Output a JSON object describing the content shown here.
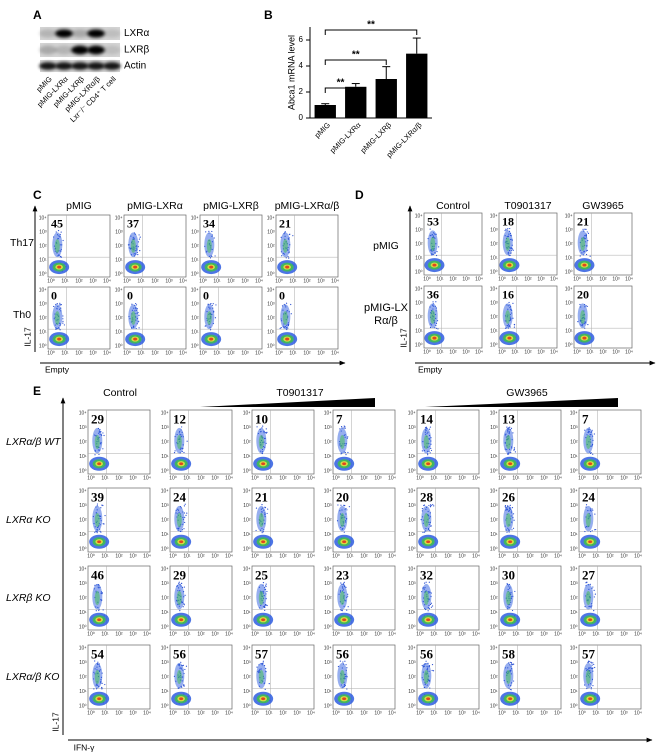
{
  "panel_labels": [
    "A",
    "B",
    "C",
    "D",
    "E"
  ],
  "flow_axis_ticks": [
    "10⁰",
    "10¹",
    "10²",
    "10³",
    "10⁴"
  ],
  "panel_a": {
    "bands": [
      "LXRα",
      "LXRβ",
      "Actin"
    ],
    "lanes": [
      "pMIG",
      "pMIG-LXRα",
      "pMIG-LXRβ",
      "pMIG-LXRα/β",
      "Lxr⁻/⁻ CD4⁺ T cell"
    ]
  },
  "chart_data": {
    "type": "bar",
    "categories": [
      "pMIG",
      "pMIG-LXRα",
      "pMIG-LXRβ",
      "pMIG-LXRα/β"
    ],
    "values": [
      1,
      2.4,
      3,
      4.95
    ],
    "errors": [
      0.1,
      0.25,
      0.95,
      1.2
    ],
    "ylabel": "Abca1 mRNA level",
    "ylim": [
      0,
      7
    ],
    "yticks": [
      0,
      2,
      4,
      6
    ],
    "color": "#000000",
    "significance_labels": [
      "**",
      "**",
      "**"
    ]
  },
  "panel_c": {
    "columns": [
      "pMIG",
      "pMIG-LXRα",
      "pMIG-LXRβ",
      "pMIG-LXRα/β"
    ],
    "rows": [
      "Th17",
      "Th0"
    ],
    "values": [
      [
        45,
        37,
        34,
        21
      ],
      [
        0,
        0,
        0,
        0
      ]
    ],
    "y_label": "IL-17",
    "x_label": "Empty"
  },
  "panel_d": {
    "columns": [
      "Control",
      "T0901317",
      "GW3965"
    ],
    "rows": [
      "pMIG",
      "pMIG-LXRα/β"
    ],
    "values": [
      [
        53,
        18,
        21
      ],
      [
        36,
        16,
        20
      ]
    ],
    "y_label": "IL-17",
    "x_label": "Empty"
  },
  "panel_e": {
    "headers": [
      "Control",
      "T0901317",
      "GW3965"
    ],
    "rows": [
      "LXRα/β WT",
      "LXRα KO",
      "LXRβ KO",
      "LXRα/β KO"
    ],
    "values": [
      [
        29,
        12,
        10,
        7,
        14,
        13,
        7
      ],
      [
        39,
        24,
        21,
        20,
        28,
        26,
        24
      ],
      [
        46,
        29,
        25,
        23,
        32,
        30,
        27
      ],
      [
        54,
        56,
        57,
        56,
        56,
        58,
        57
      ]
    ],
    "y_label": "IL-17",
    "x_label": "IFN-γ"
  }
}
